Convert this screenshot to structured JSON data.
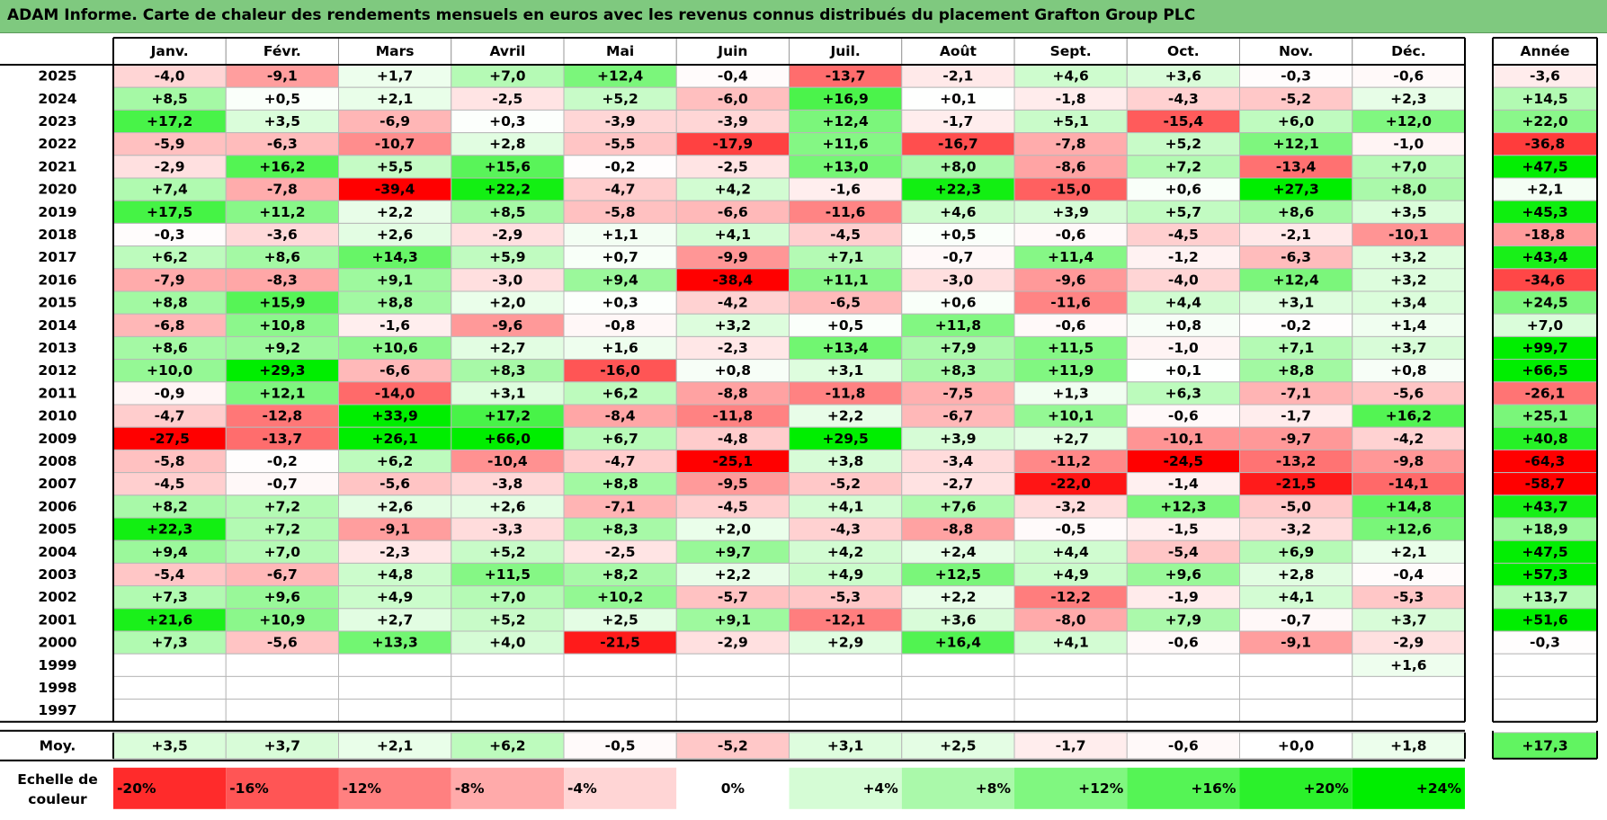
{
  "title": "ADAM Informe. Carte de chaleur des rendements mensuels en euros avec les revenus connus distribués du placement Grafton Group PLC",
  "chart_data": {
    "type": "heatmap",
    "months": [
      "Janv.",
      "Févr.",
      "Mars",
      "Avril",
      "Mai",
      "Juin",
      "Juil.",
      "Août",
      "Sept.",
      "Oct.",
      "Nov.",
      "Déc."
    ],
    "year_header": "Année",
    "rows": [
      {
        "year": "2025",
        "values": [
          "-4,0",
          "-9,1",
          "+1,7",
          "+7,0",
          "+12,4",
          "-0,4",
          "-13,7",
          "-2,1",
          "+4,6",
          "+3,6",
          "-0,3",
          "-0,6"
        ],
        "annual": "-3,6"
      },
      {
        "year": "2024",
        "values": [
          "+8,5",
          "+0,5",
          "+2,1",
          "-2,5",
          "+5,2",
          "-6,0",
          "+16,9",
          "+0,1",
          "-1,8",
          "-4,3",
          "-5,2",
          "+2,3"
        ],
        "annual": "+14,5"
      },
      {
        "year": "2023",
        "values": [
          "+17,2",
          "+3,5",
          "-6,9",
          "+0,3",
          "-3,9",
          "-3,9",
          "+12,4",
          "-1,7",
          "+5,1",
          "-15,4",
          "+6,0",
          "+12,0"
        ],
        "annual": "+22,0"
      },
      {
        "year": "2022",
        "values": [
          "-5,9",
          "-6,3",
          "-10,7",
          "+2,8",
          "-5,5",
          "-17,9",
          "+11,6",
          "-16,7",
          "-7,8",
          "+5,2",
          "+12,1",
          "-1,0"
        ],
        "annual": "-36,8"
      },
      {
        "year": "2021",
        "values": [
          "-2,9",
          "+16,2",
          "+5,5",
          "+15,6",
          "-0,2",
          "-2,5",
          "+13,0",
          "+8,0",
          "-8,6",
          "+7,2",
          "-13,4",
          "+7,0"
        ],
        "annual": "+47,5"
      },
      {
        "year": "2020",
        "values": [
          "+7,4",
          "-7,8",
          "-39,4",
          "+22,2",
          "-4,7",
          "+4,2",
          "-1,6",
          "+22,3",
          "-15,0",
          "+0,6",
          "+27,3",
          "+8,0"
        ],
        "annual": "+2,1"
      },
      {
        "year": "2019",
        "values": [
          "+17,5",
          "+11,2",
          "+2,2",
          "+8,5",
          "-5,8",
          "-6,6",
          "-11,6",
          "+4,6",
          "+3,9",
          "+5,7",
          "+8,6",
          "+3,5"
        ],
        "annual": "+45,3"
      },
      {
        "year": "2018",
        "values": [
          "-0,3",
          "-3,6",
          "+2,6",
          "-2,9",
          "+1,1",
          "+4,1",
          "-4,5",
          "+0,5",
          "-0,6",
          "-4,5",
          "-2,1",
          "-10,1"
        ],
        "annual": "-18,8"
      },
      {
        "year": "2017",
        "values": [
          "+6,2",
          "+8,6",
          "+14,3",
          "+5,9",
          "+0,7",
          "-9,9",
          "+7,1",
          "-0,7",
          "+11,4",
          "-1,2",
          "-6,3",
          "+3,2"
        ],
        "annual": "+43,4"
      },
      {
        "year": "2016",
        "values": [
          "-7,9",
          "-8,3",
          "+9,1",
          "-3,0",
          "+9,4",
          "-38,4",
          "+11,1",
          "-3,0",
          "-9,6",
          "-4,0",
          "+12,4",
          "+3,2"
        ],
        "annual": "-34,6"
      },
      {
        "year": "2015",
        "values": [
          "+8,8",
          "+15,9",
          "+8,8",
          "+2,0",
          "+0,3",
          "-4,2",
          "-6,5",
          "+0,6",
          "-11,6",
          "+4,4",
          "+3,1",
          "+3,4"
        ],
        "annual": "+24,5"
      },
      {
        "year": "2014",
        "values": [
          "-6,8",
          "+10,8",
          "-1,6",
          "-9,6",
          "-0,8",
          "+3,2",
          "+0,5",
          "+11,8",
          "-0,6",
          "+0,8",
          "-0,2",
          "+1,4"
        ],
        "annual": "+7,0"
      },
      {
        "year": "2013",
        "values": [
          "+8,6",
          "+9,2",
          "+10,6",
          "+2,7",
          "+1,6",
          "-2,3",
          "+13,4",
          "+7,9",
          "+11,5",
          "-1,0",
          "+7,1",
          "+3,7"
        ],
        "annual": "+99,7"
      },
      {
        "year": "2012",
        "values": [
          "+10,0",
          "+29,3",
          "-6,6",
          "+8,3",
          "-16,0",
          "+0,8",
          "+3,1",
          "+8,3",
          "+11,9",
          "+0,1",
          "+8,8",
          "+0,8"
        ],
        "annual": "+66,5"
      },
      {
        "year": "2011",
        "values": [
          "-0,9",
          "+12,1",
          "-14,0",
          "+3,1",
          "+6,2",
          "-8,8",
          "-11,8",
          "-7,5",
          "+1,3",
          "+6,3",
          "-7,1",
          "-5,6"
        ],
        "annual": "-26,1"
      },
      {
        "year": "2010",
        "values": [
          "-4,7",
          "-12,8",
          "+33,9",
          "+17,2",
          "-8,4",
          "-11,8",
          "+2,2",
          "-6,7",
          "+10,1",
          "-0,6",
          "-1,7",
          "+16,2"
        ],
        "annual": "+25,1"
      },
      {
        "year": "2009",
        "values": [
          "-27,5",
          "-13,7",
          "+26,1",
          "+66,0",
          "+6,7",
          "-4,8",
          "+29,5",
          "+3,9",
          "+2,7",
          "-10,1",
          "-9,7",
          "-4,2"
        ],
        "annual": "+40,8"
      },
      {
        "year": "2008",
        "values": [
          "-5,8",
          "-0,2",
          "+6,2",
          "-10,4",
          "-4,7",
          "-25,1",
          "+3,8",
          "-3,4",
          "-11,2",
          "-24,5",
          "-13,2",
          "-9,8"
        ],
        "annual": "-64,3"
      },
      {
        "year": "2007",
        "values": [
          "-4,5",
          "-0,7",
          "-5,6",
          "-3,8",
          "+8,8",
          "-9,5",
          "-5,2",
          "-2,7",
          "-22,0",
          "-1,4",
          "-21,5",
          "-14,1"
        ],
        "annual": "-58,7"
      },
      {
        "year": "2006",
        "values": [
          "+8,2",
          "+7,2",
          "+2,6",
          "+2,6",
          "-7,1",
          "-4,5",
          "+4,1",
          "+7,6",
          "-3,2",
          "+12,3",
          "-5,0",
          "+14,8"
        ],
        "annual": "+43,7"
      },
      {
        "year": "2005",
        "values": [
          "+22,3",
          "+7,2",
          "-9,1",
          "-3,3",
          "+8,3",
          "+2,0",
          "-4,3",
          "-8,8",
          "-0,5",
          "-1,5",
          "-3,2",
          "+12,6"
        ],
        "annual": "+18,9"
      },
      {
        "year": "2004",
        "values": [
          "+9,4",
          "+7,0",
          "-2,3",
          "+5,2",
          "-2,5",
          "+9,7",
          "+4,2",
          "+2,4",
          "+4,4",
          "-5,4",
          "+6,9",
          "+2,1"
        ],
        "annual": "+47,5"
      },
      {
        "year": "2003",
        "values": [
          "-5,4",
          "-6,7",
          "+4,8",
          "+11,5",
          "+8,2",
          "+2,2",
          "+4,9",
          "+12,5",
          "+4,9",
          "+9,6",
          "+2,8",
          "-0,4"
        ],
        "annual": "+57,3"
      },
      {
        "year": "2002",
        "values": [
          "+7,3",
          "+9,6",
          "+4,9",
          "+7,0",
          "+10,2",
          "-5,7",
          "-5,3",
          "+2,2",
          "-12,2",
          "-1,9",
          "+4,1",
          "-5,3"
        ],
        "annual": "+13,7"
      },
      {
        "year": "2001",
        "values": [
          "+21,6",
          "+10,9",
          "+2,7",
          "+5,2",
          "+2,5",
          "+9,1",
          "-12,1",
          "+3,6",
          "-8,0",
          "+7,9",
          "-0,7",
          "+3,7"
        ],
        "annual": "+51,6"
      },
      {
        "year": "2000",
        "values": [
          "+7,3",
          "-5,6",
          "+13,3",
          "+4,0",
          "-21,5",
          "-2,9",
          "+2,9",
          "+16,4",
          "+4,1",
          "-0,6",
          "-9,1",
          "-2,9"
        ],
        "annual": "-0,3"
      },
      {
        "year": "1999",
        "values": [
          "",
          "",
          "",
          "",
          "",
          "",
          "",
          "",
          "",
          "",
          "",
          "+1,6"
        ],
        "annual": ""
      },
      {
        "year": "1998",
        "values": [
          "",
          "",
          "",
          "",
          "",
          "",
          "",
          "",
          "",
          "",
          "",
          ""
        ],
        "annual": ""
      },
      {
        "year": "1997",
        "values": [
          "",
          "",
          "",
          "",
          "",
          "",
          "",
          "",
          "",
          "",
          "",
          ""
        ],
        "annual": ""
      }
    ],
    "average": {
      "label": "Moy.",
      "values": [
        "+3,5",
        "+3,7",
        "+2,1",
        "+6,2",
        "-0,5",
        "-5,2",
        "+3,1",
        "+2,5",
        "-1,7",
        "-0,6",
        "+0,0",
        "+1,8"
      ],
      "annual": "+17,3"
    },
    "scale": {
      "label_line1": "Echelle de",
      "label_line2": "couleur",
      "steps": [
        "-20%",
        "-16%",
        "-12%",
        "-8%",
        "-4%",
        "0%",
        "+4%",
        "+8%",
        "+12%",
        "+16%",
        "+20%",
        "+24%"
      ]
    },
    "colors": {
      "negative_max": "#ff0000",
      "neutral": "#ffffff",
      "positive_max": "#00ee00",
      "title_bar": "#7fc97f"
    }
  }
}
